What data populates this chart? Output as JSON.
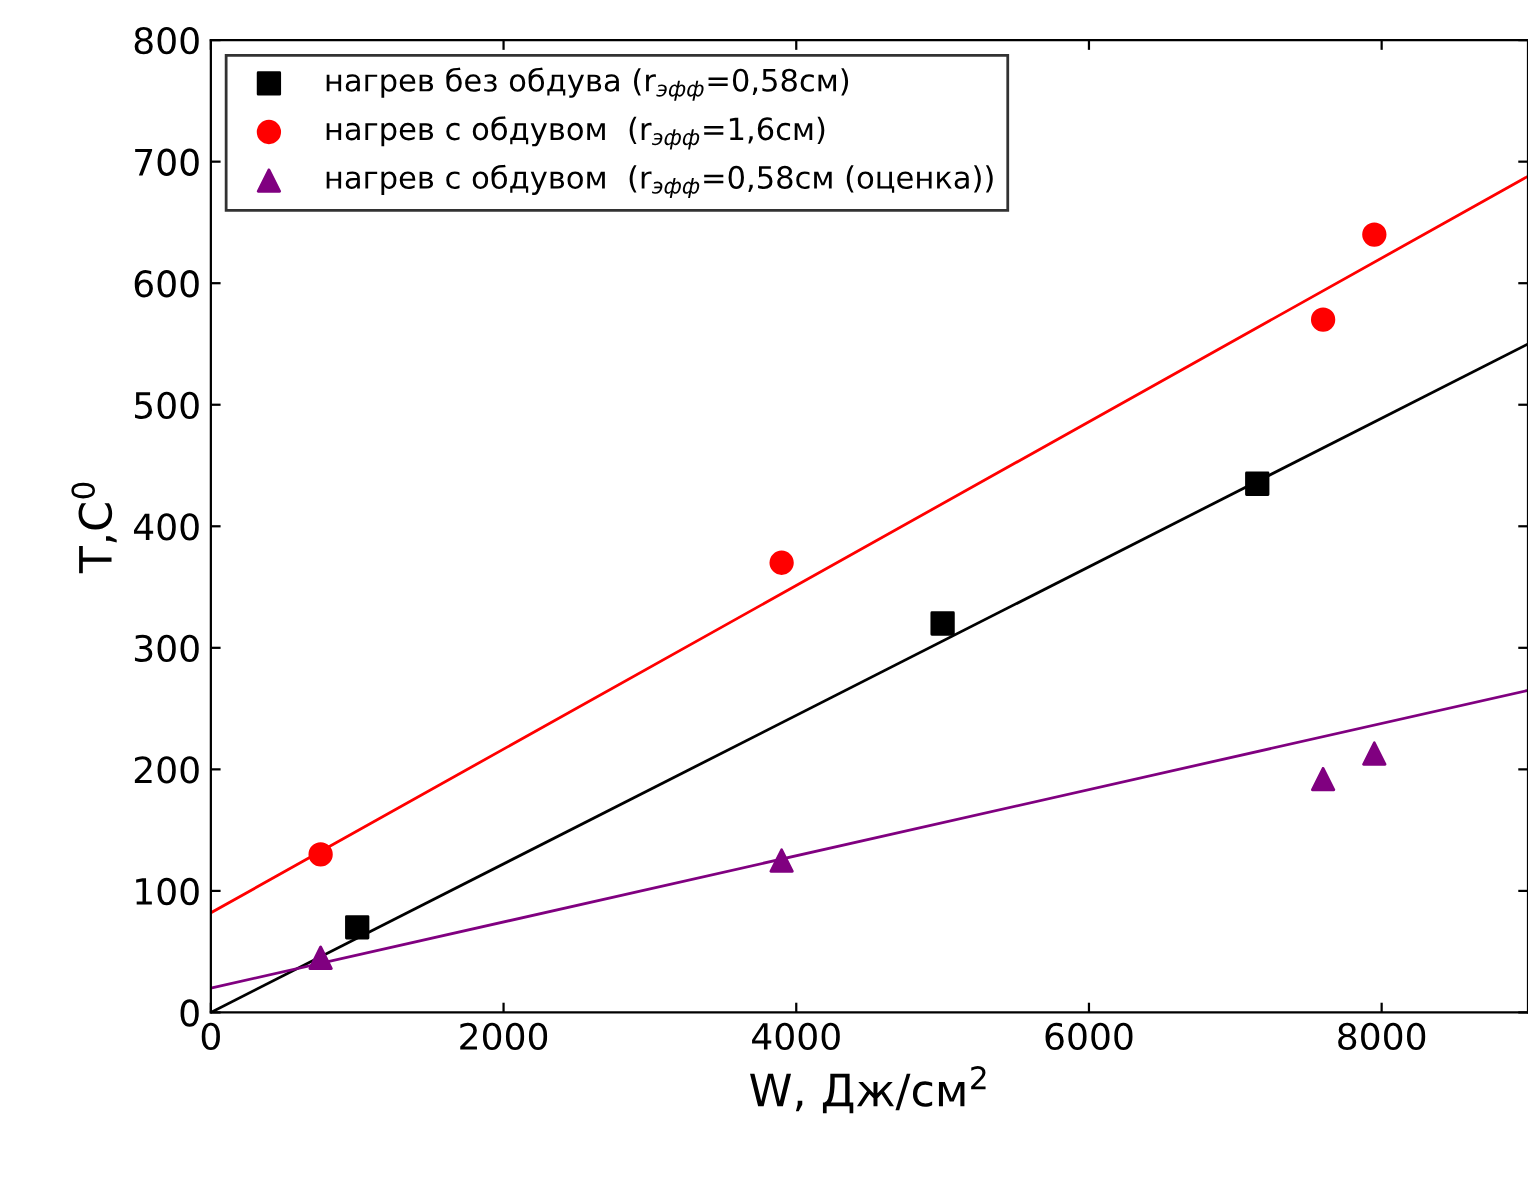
{
  "chart_data": {
    "type": "scatter",
    "xlabel": "W, Дж/см$^{2}$",
    "ylabel": "T,C$^{0}$",
    "xlim": [
      0,
      9000
    ],
    "ylim": [
      0,
      800
    ],
    "xticks": [
      0,
      2000,
      4000,
      6000,
      8000
    ],
    "yticks": [
      0,
      100,
      200,
      300,
      400,
      500,
      600,
      700,
      800
    ],
    "grid": false,
    "legend": "top left",
    "series": [
      {
        "name": "нагрев без обдува (r$_{эфф}$=0,58см)",
        "color": "#000000",
        "marker": "square",
        "x": [
          1000,
          5000,
          7150
        ],
        "values": [
          70,
          320,
          435
        ]
      },
      {
        "name": "нагрев с обдувом  (r$_{эфф}$=1,6см)",
        "color": "#ff0000",
        "marker": "circle",
        "x": [
          750,
          3900,
          7600,
          7950
        ],
        "values": [
          130,
          370,
          570,
          640
        ]
      },
      {
        "name": "нагрев с обдувом  (r$_{эфф}$=0,58см (оценка))",
        "color": "#800080",
        "marker": "triangle",
        "x": [
          750,
          3900,
          7600,
          7950
        ],
        "values": [
          45,
          125,
          192,
          213
        ]
      },
      {
        "type": "line",
        "color": "#000000",
        "x": [
          0,
          9000
        ],
        "values": [
          0,
          550
        ]
      },
      {
        "type": "line",
        "color": "#ff0000",
        "x": [
          0,
          9000
        ],
        "values": [
          82,
          688
        ]
      },
      {
        "type": "line",
        "color": "#800080",
        "x": [
          0,
          9000
        ],
        "values": [
          20,
          265
        ]
      }
    ]
  }
}
